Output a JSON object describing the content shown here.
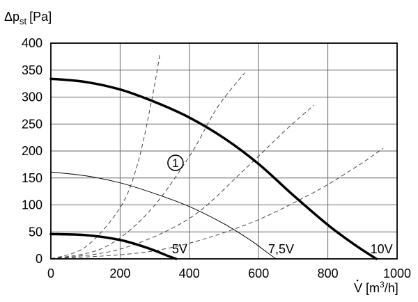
{
  "chart_data": {
    "type": "line",
    "ylabel_prefix": "Δp",
    "ylabel_sub": "st",
    "ylabel_unit": "[Pa]",
    "xlabel_symbol": "V",
    "xlabel_unit_prefix": "[m",
    "xlabel_unit_sup": "3",
    "xlabel_unit_suffix": "/h]",
    "xlim": [
      0,
      1000
    ],
    "ylim": [
      0,
      400
    ],
    "x_ticks": [
      0,
      200,
      400,
      600,
      800,
      1000
    ],
    "y_ticks": [
      0,
      50,
      100,
      150,
      200,
      250,
      300,
      350,
      400
    ],
    "grid": true,
    "series": [
      {
        "name": "10V",
        "style": "fan-main",
        "points": [
          [
            0,
            334
          ],
          [
            100,
            328
          ],
          [
            200,
            314
          ],
          [
            300,
            291
          ],
          [
            400,
            262
          ],
          [
            500,
            224
          ],
          [
            600,
            176
          ],
          [
            700,
            118
          ],
          [
            800,
            63
          ],
          [
            880,
            25
          ],
          [
            940,
            0
          ]
        ]
      },
      {
        "name": "7,5V",
        "style": "fan-thin",
        "points": [
          [
            0,
            161
          ],
          [
            100,
            154
          ],
          [
            200,
            141
          ],
          [
            300,
            121
          ],
          [
            400,
            97
          ],
          [
            500,
            65
          ],
          [
            580,
            33
          ],
          [
            620,
            14
          ],
          [
            650,
            0
          ]
        ]
      },
      {
        "name": "5V",
        "style": "fan-bold",
        "points": [
          [
            0,
            46
          ],
          [
            100,
            44
          ],
          [
            200,
            35
          ],
          [
            280,
            20
          ],
          [
            340,
            5
          ],
          [
            362,
            0
          ]
        ]
      }
    ],
    "system_curves": [
      {
        "points": [
          [
            0,
            0
          ],
          [
            100,
            22
          ],
          [
            200,
            95
          ],
          [
            250,
            175
          ],
          [
            290,
            290
          ],
          [
            315,
            380
          ]
        ]
      },
      {
        "points": [
          [
            0,
            0
          ],
          [
            150,
            20
          ],
          [
            280,
            85
          ],
          [
            400,
            190
          ],
          [
            480,
            280
          ],
          [
            560,
            345
          ]
        ]
      },
      {
        "points": [
          [
            0,
            0
          ],
          [
            200,
            18
          ],
          [
            400,
            75
          ],
          [
            550,
            160
          ],
          [
            680,
            240
          ],
          [
            760,
            285
          ]
        ]
      },
      {
        "points": [
          [
            0,
            0
          ],
          [
            300,
            15
          ],
          [
            550,
            60
          ],
          [
            750,
            120
          ],
          [
            880,
            170
          ],
          [
            960,
            205
          ]
        ]
      }
    ],
    "curve_labels": [
      {
        "text": "5V",
        "x": 372,
        "y": 0
      },
      {
        "text": "7,5V",
        "x": 665,
        "y": 0
      },
      {
        "text": "10V",
        "x": 955,
        "y": 0
      }
    ],
    "marker": {
      "text": "1",
      "x": 360,
      "y": 178
    }
  }
}
